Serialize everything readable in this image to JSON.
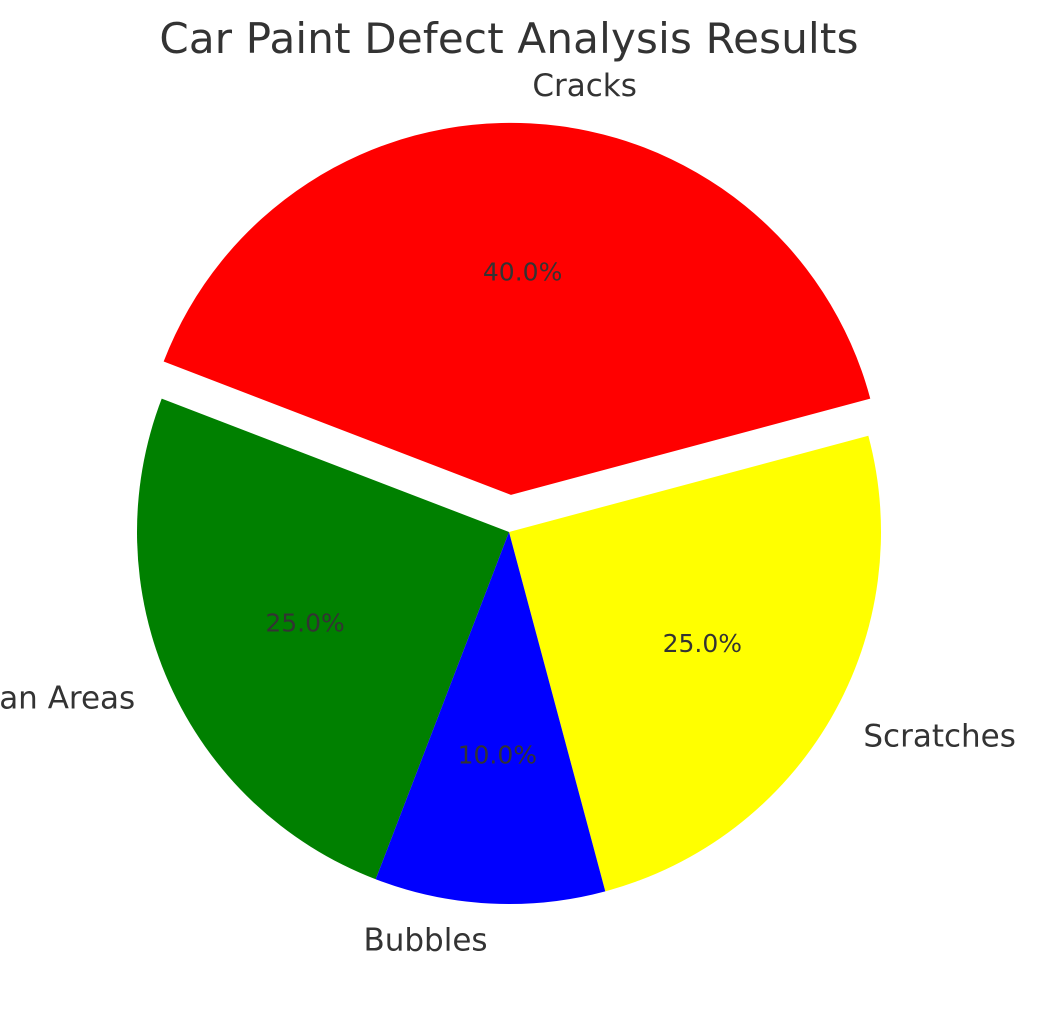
{
  "chart_data": {
    "type": "pie",
    "title": "Car Paint Defect Analysis Results",
    "categories": [
      "Scratches",
      "Cracks",
      "Clean Areas",
      "Bubbles"
    ],
    "values": [
      25.0,
      40.0,
      25.0,
      10.0
    ],
    "percent_labels": [
      "25.0%",
      "40.0%",
      "25.0%",
      "10.0%"
    ],
    "colors": [
      "#ffff00",
      "#ff0000",
      "#008000",
      "#0000ff"
    ],
    "exploded": [
      false,
      true,
      false,
      false
    ],
    "legend": "none"
  }
}
